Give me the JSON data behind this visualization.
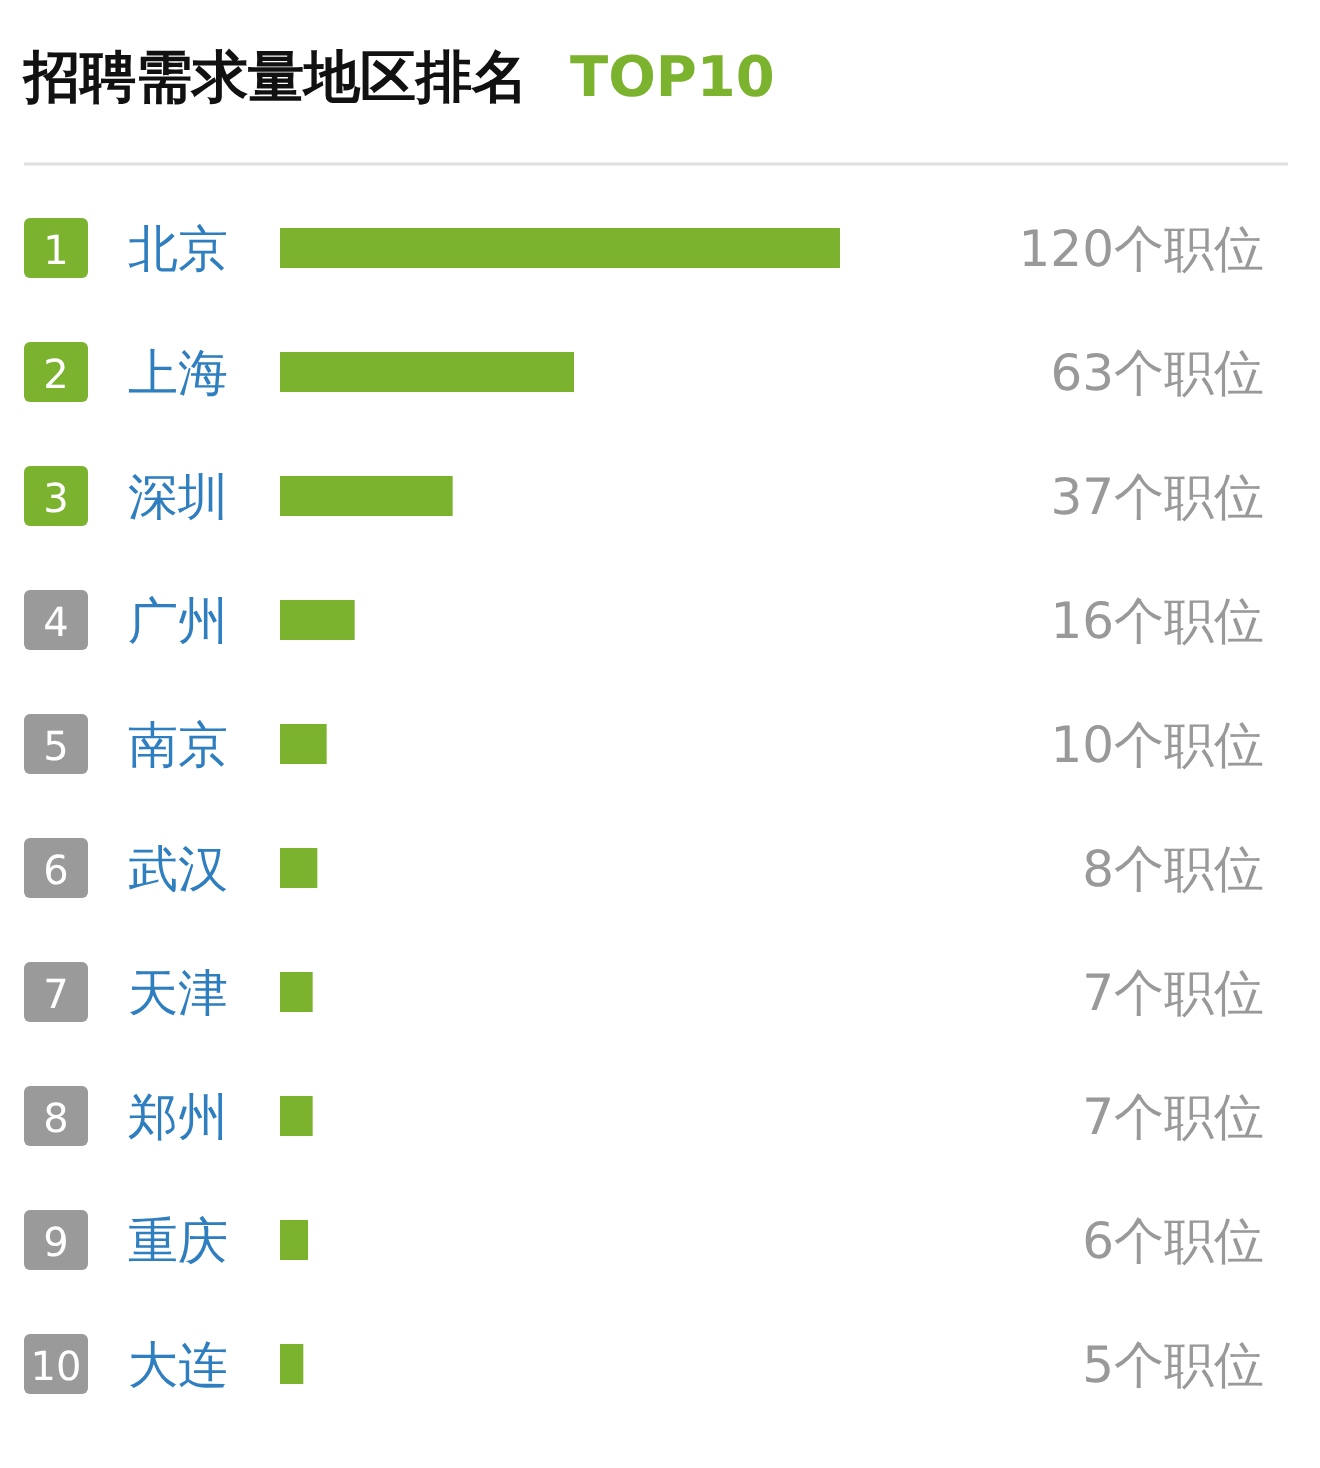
{
  "chart_data": {
    "type": "bar",
    "orientation": "horizontal",
    "title": "招聘需求量地区排名",
    "subtitle": "TOP10",
    "categories": [
      "北京",
      "上海",
      "深圳",
      "广州",
      "南京",
      "武汉",
      "天津",
      "郑州",
      "重庆",
      "大连"
    ],
    "values": [
      120,
      63,
      37,
      16,
      10,
      8,
      7,
      7,
      6,
      5
    ],
    "value_labels": [
      "120个职位",
      "63个职位",
      "37个职位",
      "16个职位",
      "10个职位",
      "8个职位",
      "7个职位",
      "7个职位",
      "6个职位",
      "5个职位"
    ],
    "annotations": [
      "1",
      "2",
      "3",
      "4",
      "5",
      "6",
      "7",
      "8",
      "9",
      "10"
    ],
    "color": "#7cb32e"
  }
}
